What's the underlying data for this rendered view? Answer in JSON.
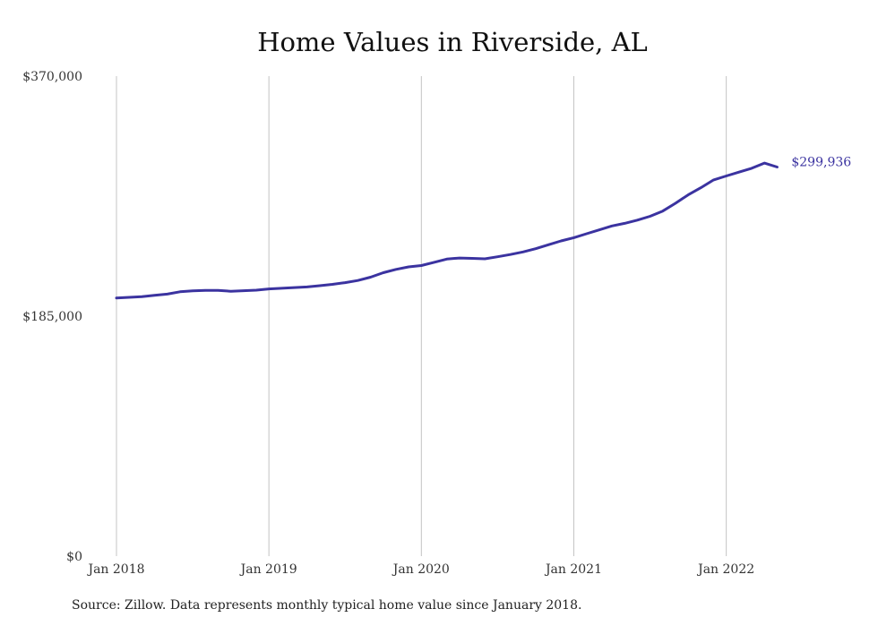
{
  "chart_data": {
    "type": "line",
    "title": "Home Values in Riverside, AL",
    "xlabel": "",
    "ylabel": "",
    "ylim": [
      0,
      370000
    ],
    "y_ticks": [
      "$0",
      "$185,000",
      "$370,000"
    ],
    "y_tick_values": [
      0,
      185000,
      370000
    ],
    "x_ticks": [
      "Jan 2018",
      "Jan 2019",
      "Jan 2020",
      "Jan 2021",
      "Jan 2022"
    ],
    "x_tick_values": [
      "2018-01",
      "2019-01",
      "2020-01",
      "2021-01",
      "2022-01"
    ],
    "grid": "vertical",
    "line_color": "#3b33a0",
    "end_label": "$299,936",
    "series": [
      {
        "x": [
          "2018-01",
          "2018-02",
          "2018-03",
          "2018-04",
          "2018-05",
          "2018-06",
          "2018-07",
          "2018-08",
          "2018-09",
          "2018-10",
          "2018-11",
          "2018-12",
          "2019-01",
          "2019-02",
          "2019-03",
          "2019-04",
          "2019-05",
          "2019-06",
          "2019-07",
          "2019-08",
          "2019-09",
          "2019-10",
          "2019-11",
          "2019-12",
          "2020-01",
          "2020-02",
          "2020-03",
          "2020-04",
          "2020-05",
          "2020-06",
          "2020-07",
          "2020-08",
          "2020-09",
          "2020-10",
          "2020-11",
          "2020-12",
          "2021-01",
          "2021-02",
          "2021-03",
          "2021-04",
          "2021-05",
          "2021-06",
          "2021-07",
          "2021-08",
          "2021-09",
          "2021-10",
          "2021-11",
          "2021-12",
          "2022-01",
          "2022-02",
          "2022-03",
          "2022-04",
          "2022-05"
        ],
        "values": [
          199000,
          199500,
          200000,
          201000,
          202000,
          203800,
          204500,
          204800,
          204800,
          204200,
          204600,
          205000,
          206000,
          206500,
          207000,
          207500,
          208500,
          209500,
          210800,
          212500,
          215000,
          218500,
          221000,
          223000,
          224000,
          226500,
          229000,
          229800,
          229500,
          229200,
          230800,
          232500,
          234500,
          237000,
          240000,
          243000,
          245500,
          248500,
          251500,
          254500,
          256500,
          259000,
          262000,
          266000,
          272000,
          278500,
          284000,
          290000,
          293000,
          296000,
          299000,
          303000,
          299936
        ]
      }
    ]
  },
  "source_note": "Source: Zillow. Data represents monthly typical home value since January 2018."
}
